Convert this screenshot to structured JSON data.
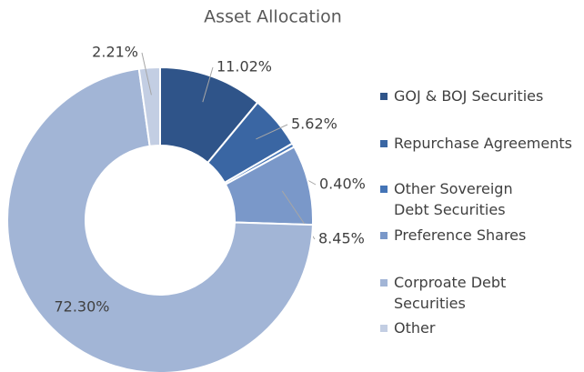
{
  "chart_data": {
    "type": "donut",
    "title": "Asset Allocation",
    "categories": [
      "GOJ & BOJ Securities",
      "Repurchase Agreements",
      "Other Sovereign Debt Securities",
      "Preference Shares",
      "Corproate Debt Securities",
      "Other"
    ],
    "values": [
      11.02,
      5.62,
      0.4,
      8.45,
      72.3,
      2.21
    ],
    "value_labels": [
      "11.02%",
      "5.62%",
      "0.40%",
      "8.45%",
      "72.30%",
      "2.21%"
    ],
    "colors": [
      "#2f5489",
      "#3a66a3",
      "#4474b6",
      "#7a98c9",
      "#a2b5d6",
      "#c3cee3"
    ],
    "legend": "right"
  }
}
